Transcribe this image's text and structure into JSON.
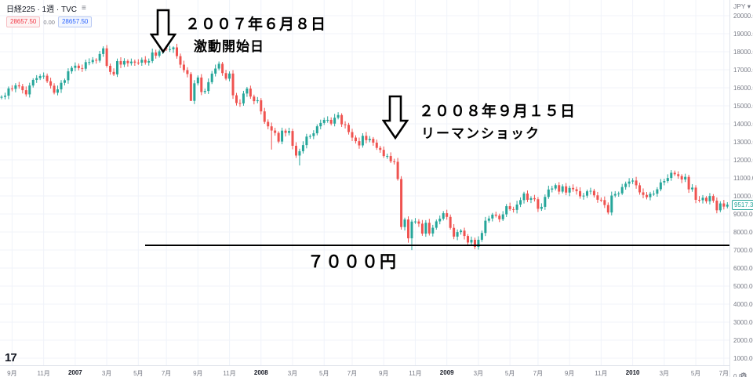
{
  "header": {
    "symbol_title": "日経225 · 1週 · TVC",
    "menu_icon": "≡",
    "bid": "28657.50",
    "spread": "0.00",
    "ask": "28657.50"
  },
  "price_axis": {
    "currency_label": "JPY ▾",
    "labels": [
      "20000.00",
      "19000.00",
      "18000.00",
      "17000.00",
      "16000.00",
      "15000.00",
      "14000.00",
      "13000.00",
      "12000.00",
      "11000.00",
      "10000.00",
      "9000.00",
      "8000.00",
      "7000.00",
      "6000.00",
      "5000.00",
      "4000.00",
      "3000.00",
      "2000.00",
      "1000.00",
      "0.00"
    ],
    "last_price_tag": "9517.30",
    "gear_icon": "⚙"
  },
  "time_axis": {
    "labels": [
      {
        "text": "9月",
        "week": 3,
        "bold": false
      },
      {
        "text": "11月",
        "week": 12,
        "bold": false
      },
      {
        "text": "2007",
        "week": 21,
        "bold": true
      },
      {
        "text": "3月",
        "week": 30,
        "bold": false
      },
      {
        "text": "5月",
        "week": 39,
        "bold": false
      },
      {
        "text": "7月",
        "week": 47,
        "bold": false
      },
      {
        "text": "9月",
        "week": 56,
        "bold": false
      },
      {
        "text": "11月",
        "week": 65,
        "bold": false
      },
      {
        "text": "2008",
        "week": 74,
        "bold": true
      },
      {
        "text": "3月",
        "week": 83,
        "bold": false
      },
      {
        "text": "5月",
        "week": 92,
        "bold": false
      },
      {
        "text": "7月",
        "week": 100,
        "bold": false
      },
      {
        "text": "9月",
        "week": 109,
        "bold": false
      },
      {
        "text": "11月",
        "week": 118,
        "bold": false
      },
      {
        "text": "2009",
        "week": 127,
        "bold": true
      },
      {
        "text": "3月",
        "week": 136,
        "bold": false
      },
      {
        "text": "5月",
        "week": 145,
        "bold": false
      },
      {
        "text": "7月",
        "week": 153,
        "bold": false
      },
      {
        "text": "9月",
        "week": 162,
        "bold": false
      },
      {
        "text": "11月",
        "week": 171,
        "bold": false
      },
      {
        "text": "2010",
        "week": 180,
        "bold": true
      },
      {
        "text": "3月",
        "week": 189,
        "bold": false
      },
      {
        "text": "5月",
        "week": 198,
        "bold": false
      },
      {
        "text": "7月",
        "week": 206,
        "bold": false
      }
    ]
  },
  "annotations": {
    "a1_line1": "２００７年６月８日",
    "a1_line2": "激動開始日",
    "a2_line1": "２００８年９月１５日",
    "a2_line2": "リーマンショック",
    "hline_label": "７０００円"
  },
  "logo_text": "17",
  "chart_data": {
    "type": "candlestick",
    "title": "日経225 (Nikkei 225), 1週 weekly, TVC",
    "currency": "JPY",
    "x_range": "2006年8月 - 2010年7月 (weekly bars)",
    "ylim": [
      0,
      20500
    ],
    "grid": true,
    "up_color": "#26a69a",
    "down_color": "#ef5350",
    "last_price": 9517.3,
    "open_first": 15450,
    "closes": [
      15499,
      15565,
      15966,
      15939,
      16134,
      16080,
      15866,
      15634,
      16128,
      16436,
      16536,
      16651,
      16669,
      16364,
      16113,
      15727,
      15914,
      16274,
      16418,
      16914,
      17105,
      17226,
      17091,
      17057,
      17421,
      17422,
      17547,
      17504,
      17875,
      18188,
      17218,
      16880,
      16744,
      17480,
      17288,
      17484,
      17364,
      17452,
      17400,
      17394,
      17553,
      17399,
      17481,
      17958,
      17779,
      18023,
      18188,
      18138,
      18140,
      18239,
      17755,
      17283,
      16979,
      16764,
      15274,
      16248,
      16569,
      15764,
      15821,
      16312,
      16786,
      17065,
      17331,
      16814,
      16506,
      16790,
      15583,
      15154,
      15135,
      15681,
      15956,
      15514,
      15257,
      15308,
      14691,
      14110,
      13861,
      13629,
      13497,
      13017,
      13622,
      13500,
      13603,
      12782,
      12241,
      12482,
      12821,
      13293,
      13323,
      13476,
      13863,
      14049,
      14219,
      14220,
      14012,
      14339,
      14489,
      13973,
      13942,
      13544,
      13237,
      13039,
      12804,
      13335,
      13094,
      13168,
      12956,
      12666,
      12557,
      12213,
      12215,
      11921,
      11894,
      10938,
      8276,
      8694,
      7649,
      8577,
      8583,
      8463,
      7911,
      8512,
      7918,
      8236,
      8589,
      8740,
      9043,
      8836,
      8230,
      7745,
      7994,
      8076,
      7779,
      7416,
      7568,
      7173,
      7569,
      7946,
      8626,
      8750,
      8964,
      8908,
      8707,
      8977,
      9432,
      9265,
      9225,
      9522,
      9768,
      10136,
      9786,
      9877,
      9816,
      9287,
      9395,
      9945,
      10357,
      10412,
      10597,
      10238,
      10534,
      10187,
      10444,
      10371,
      10266,
      9979,
      10016,
      10257,
      10283,
      10034,
      9789,
      9770,
      9497,
      9082,
      10022,
      10108,
      10142,
      10494,
      10681,
      10798,
      10855,
      10591,
      10198,
      10057,
      9932,
      10123,
      10126,
      10369,
      10751,
      10824,
      10996,
      11286,
      11204,
      11102,
      10914,
      11057,
      10365,
      10462,
      9785,
      9763,
      9901,
      9705,
      9995,
      9737,
      9204,
      9585,
      9408,
      9517.3
    ],
    "high_overrides": {
      "29": 18300,
      "49": 18297,
      "62": 17458,
      "192": 11408
    },
    "low_overrides": {
      "54": 15262,
      "77": 12573,
      "85": 11691,
      "116": 7406,
      "117": 6994,
      "136": 7021
    }
  }
}
